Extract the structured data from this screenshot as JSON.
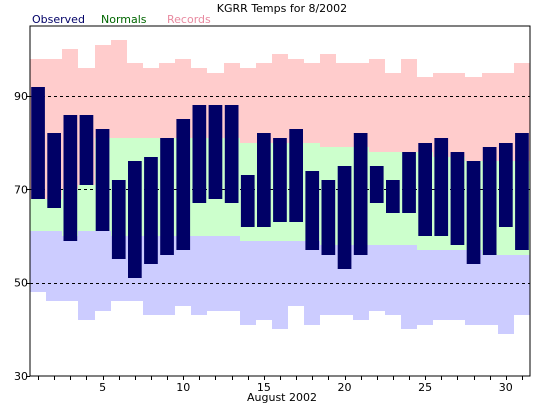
{
  "chart_data": {
    "type": "bar",
    "title": "KGRR Temps for 8/2002",
    "xlabel": "August 2002",
    "ylabel": "",
    "xlim": [
      0.5,
      31.5
    ],
    "ylim": [
      30,
      105
    ],
    "yticks": [
      30,
      50,
      70,
      90
    ],
    "xticks": [
      5,
      10,
      15,
      20,
      25,
      30
    ],
    "grid_lines_y": [
      50,
      70,
      90
    ],
    "legend": [
      {
        "label": "Observed",
        "color": "#000066"
      },
      {
        "label": "Normals",
        "color": "#006600"
      },
      {
        "label": "Records",
        "color": "#e88aa0"
      }
    ],
    "colors": {
      "record_high_band": "#ffcccc",
      "normal_band": "#ccffcc",
      "record_low_band": "#ccccff",
      "observed_bar": "#000066",
      "axis": "#000000",
      "grid": "#000000"
    },
    "days": [
      1,
      2,
      3,
      4,
      5,
      6,
      7,
      8,
      9,
      10,
      11,
      12,
      13,
      14,
      15,
      16,
      17,
      18,
      19,
      20,
      21,
      22,
      23,
      24,
      25,
      26,
      27,
      28,
      29,
      30,
      31
    ],
    "series": [
      {
        "name": "Record High",
        "values": [
          98,
          98,
          100,
          96,
          101,
          102,
          97,
          96,
          97,
          98,
          96,
          95,
          97,
          96,
          97,
          99,
          98,
          97,
          99,
          97,
          97,
          98,
          95,
          98,
          94,
          95,
          95,
          94,
          95,
          95,
          97
        ]
      },
      {
        "name": "Normal High",
        "values": [
          68,
          68,
          70,
          71,
          81,
          81,
          81,
          81,
          81,
          81,
          81,
          81,
          81,
          80,
          80,
          80,
          80,
          80,
          79,
          79,
          79,
          78,
          78,
          78,
          78,
          77,
          77,
          76,
          76,
          76,
          76
        ]
      },
      {
        "name": "Normal Low",
        "values": [
          61,
          61,
          60,
          61,
          61,
          60,
          60,
          60,
          60,
          60,
          60,
          60,
          60,
          59,
          59,
          59,
          59,
          59,
          58,
          58,
          58,
          58,
          58,
          58,
          57,
          57,
          57,
          57,
          56,
          56,
          56
        ]
      },
      {
        "name": "Record Low",
        "values": [
          48,
          46,
          46,
          42,
          44,
          46,
          46,
          43,
          43,
          45,
          43,
          44,
          44,
          41,
          42,
          40,
          45,
          41,
          43,
          43,
          42,
          44,
          43,
          40,
          41,
          42,
          42,
          41,
          41,
          39,
          43
        ]
      },
      {
        "name": "Observed High",
        "values": [
          92,
          82,
          86,
          86,
          83,
          72,
          76,
          77,
          81,
          85,
          88,
          88,
          88,
          73,
          82,
          81,
          83,
          74,
          72,
          75,
          82,
          75,
          72,
          78,
          80,
          81,
          78,
          76,
          79,
          80,
          82
        ]
      },
      {
        "name": "Observed Low",
        "values": [
          68,
          66,
          59,
          71,
          61,
          55,
          51,
          54,
          56,
          57,
          67,
          68,
          67,
          62,
          62,
          63,
          63,
          57,
          56,
          53,
          56,
          67,
          65,
          65,
          60,
          60,
          58,
          54,
          56,
          62,
          57
        ]
      }
    ]
  }
}
